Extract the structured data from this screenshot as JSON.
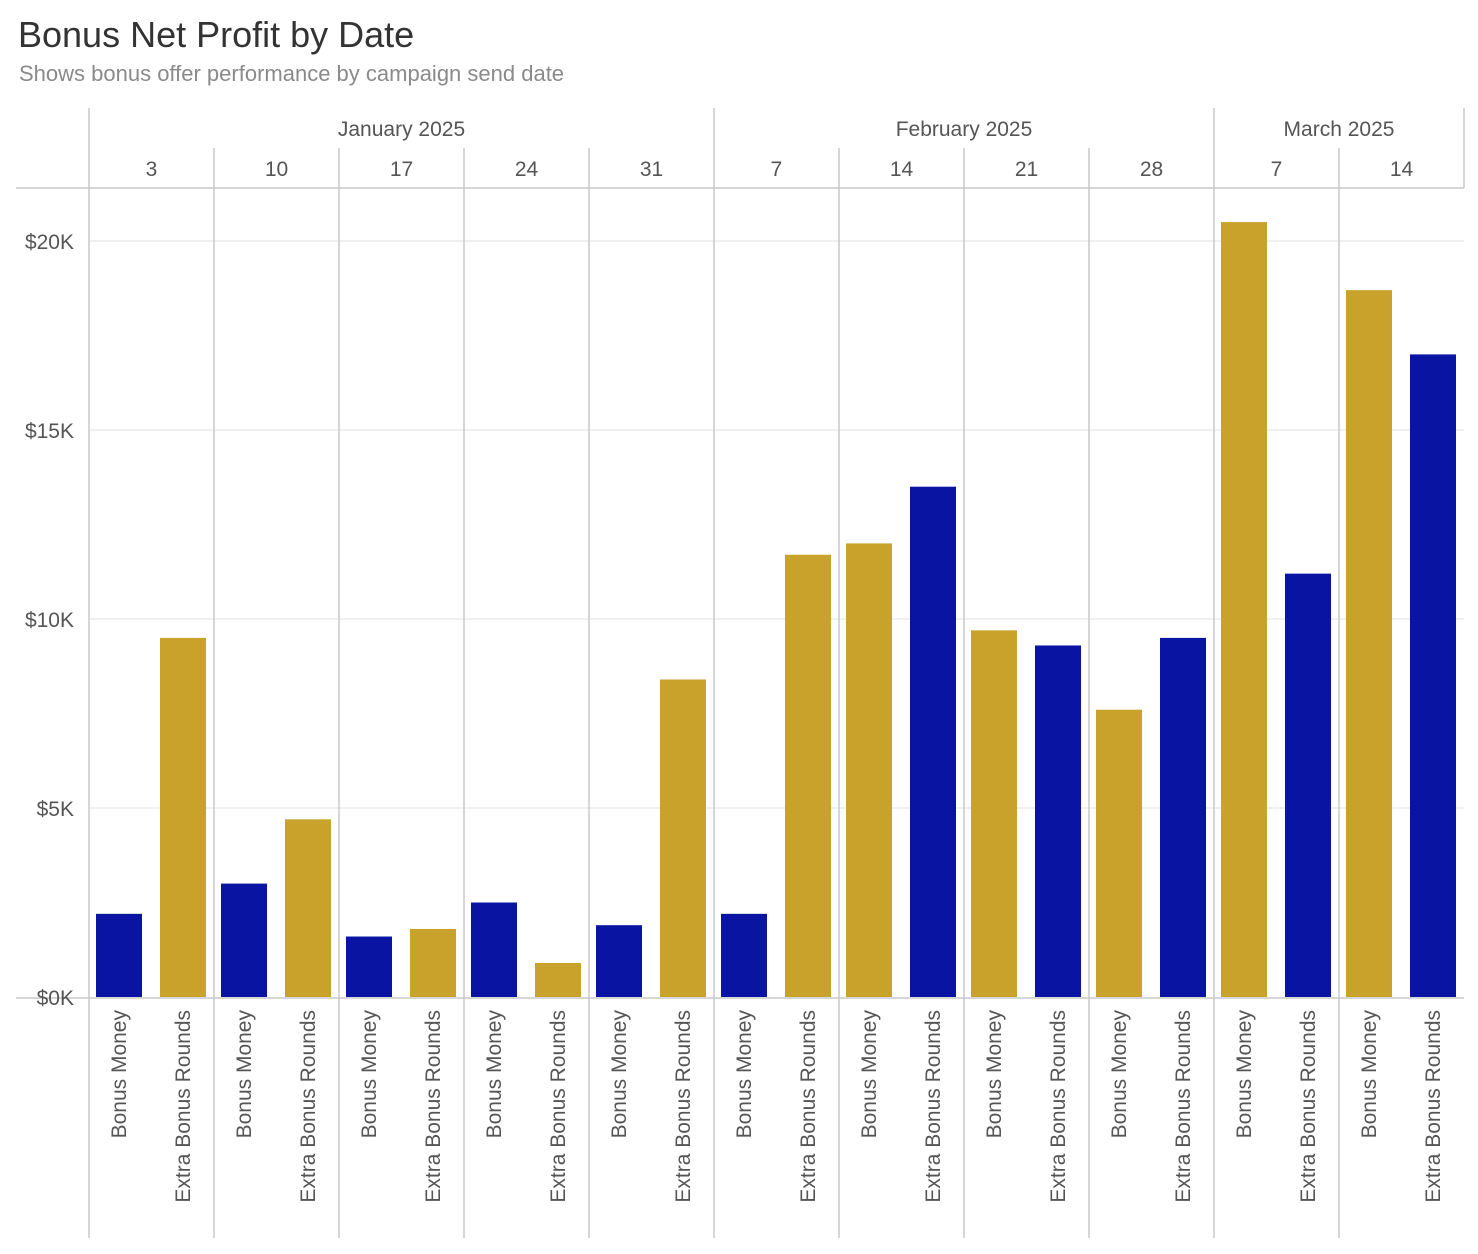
{
  "title": "Bonus Net Profit by Date",
  "subtitle": "Shows bonus offer performance by campaign send date",
  "colors": {
    "Bonus Money": "#0a14a3",
    "Extra Bonus Rounds": "#c8a22a",
    "gold": "#c8a22a",
    "blue": "#0a14a3",
    "axis_text": "#555555",
    "grid": "#ececec",
    "divider": "#c8c8c8"
  },
  "chart_data": {
    "type": "bar",
    "title": "Bonus Net Profit by Date",
    "subtitle": "Shows bonus offer performance by campaign send date",
    "ylabel": "",
    "xlabel": "",
    "ylim": [
      0,
      21000
    ],
    "yticks": [
      0,
      5000,
      10000,
      15000,
      20000
    ],
    "ytick_labels": [
      "$0K",
      "$5K",
      "$10K",
      "$15K",
      "$20K"
    ],
    "grid": true,
    "months": [
      {
        "label": "January 2025",
        "days": [
          "3",
          "10",
          "17",
          "24",
          "31"
        ]
      },
      {
        "label": "February 2025",
        "days": [
          "7",
          "14",
          "21",
          "28"
        ]
      },
      {
        "label": "March 2025",
        "days": [
          "7",
          "14"
        ]
      }
    ],
    "series_names": [
      "Bonus Money",
      "Extra Bonus Rounds"
    ],
    "groups": [
      {
        "month": "January 2025",
        "day": "3",
        "bars": [
          {
            "series": "Bonus Money",
            "value": 2200,
            "color": "blue"
          },
          {
            "series": "Extra Bonus Rounds",
            "value": 9500,
            "color": "gold"
          }
        ]
      },
      {
        "month": "January 2025",
        "day": "10",
        "bars": [
          {
            "series": "Bonus Money",
            "value": 3000,
            "color": "blue"
          },
          {
            "series": "Extra Bonus Rounds",
            "value": 4700,
            "color": "gold"
          }
        ]
      },
      {
        "month": "January 2025",
        "day": "17",
        "bars": [
          {
            "series": "Bonus Money",
            "value": 1600,
            "color": "blue"
          },
          {
            "series": "Extra Bonus Rounds",
            "value": 1800,
            "color": "gold"
          }
        ]
      },
      {
        "month": "January 2025",
        "day": "24",
        "bars": [
          {
            "series": "Bonus Money",
            "value": 2500,
            "color": "blue"
          },
          {
            "series": "Extra Bonus Rounds",
            "value": 900,
            "color": "gold"
          }
        ]
      },
      {
        "month": "January 2025",
        "day": "31",
        "bars": [
          {
            "series": "Bonus Money",
            "value": 1900,
            "color": "blue"
          },
          {
            "series": "Extra Bonus Rounds",
            "value": 8400,
            "color": "gold"
          }
        ]
      },
      {
        "month": "February 2025",
        "day": "7",
        "bars": [
          {
            "series": "Bonus Money",
            "value": 2200,
            "color": "blue"
          },
          {
            "series": "Extra Bonus Rounds",
            "value": 11700,
            "color": "gold"
          }
        ]
      },
      {
        "month": "February 2025",
        "day": "14",
        "bars": [
          {
            "series": "Bonus Money",
            "value": 12000,
            "color": "gold"
          },
          {
            "series": "Extra Bonus Rounds",
            "value": 13500,
            "color": "blue"
          }
        ]
      },
      {
        "month": "February 2025",
        "day": "21",
        "bars": [
          {
            "series": "Bonus Money",
            "value": 9700,
            "color": "gold"
          },
          {
            "series": "Extra Bonus Rounds",
            "value": 9300,
            "color": "blue"
          }
        ]
      },
      {
        "month": "February 2025",
        "day": "28",
        "bars": [
          {
            "series": "Bonus Money",
            "value": 7600,
            "color": "gold"
          },
          {
            "series": "Extra Bonus Rounds",
            "value": 9500,
            "color": "blue"
          }
        ]
      },
      {
        "month": "March 2025",
        "day": "7",
        "bars": [
          {
            "series": "Bonus Money",
            "value": 20500,
            "color": "gold"
          },
          {
            "series": "Extra Bonus Rounds",
            "value": 11200,
            "color": "blue"
          }
        ]
      },
      {
        "month": "March 2025",
        "day": "14",
        "bars": [
          {
            "series": "Bonus Money",
            "value": 18700,
            "color": "gold"
          },
          {
            "series": "Extra Bonus Rounds",
            "value": 17000,
            "color": "blue"
          }
        ]
      }
    ]
  }
}
